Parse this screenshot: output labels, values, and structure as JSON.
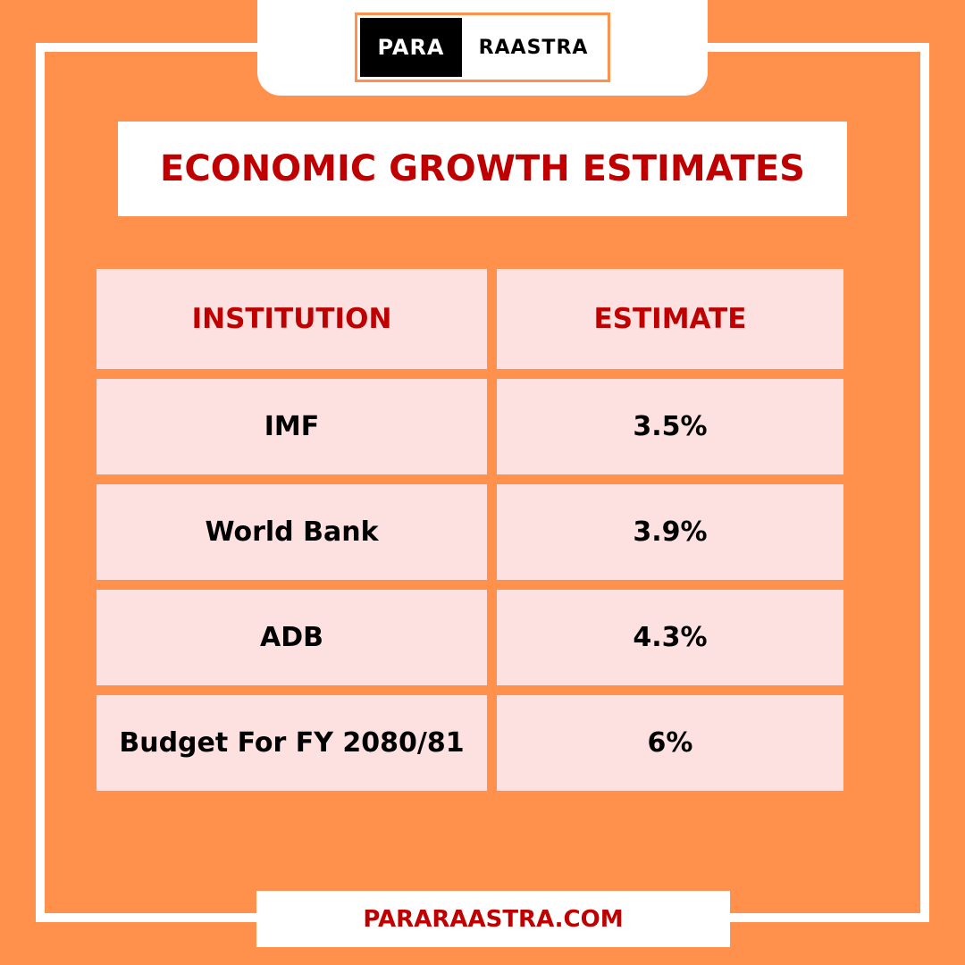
{
  "logo": {
    "left": "PARA",
    "right": "RAASTRA"
  },
  "title": "ECONOMIC GROWTH ESTIMATES",
  "table": {
    "header": [
      "INSTITUTION",
      "ESTIMATE"
    ],
    "rows": [
      [
        "IMF",
        "3.5%"
      ],
      [
        "World Bank",
        "3.9%"
      ],
      [
        "ADB",
        "4.3%"
      ],
      [
        "Budget For FY 2080/81",
        "6%"
      ]
    ]
  },
  "footer": "PARARAASTRA.COM"
}
